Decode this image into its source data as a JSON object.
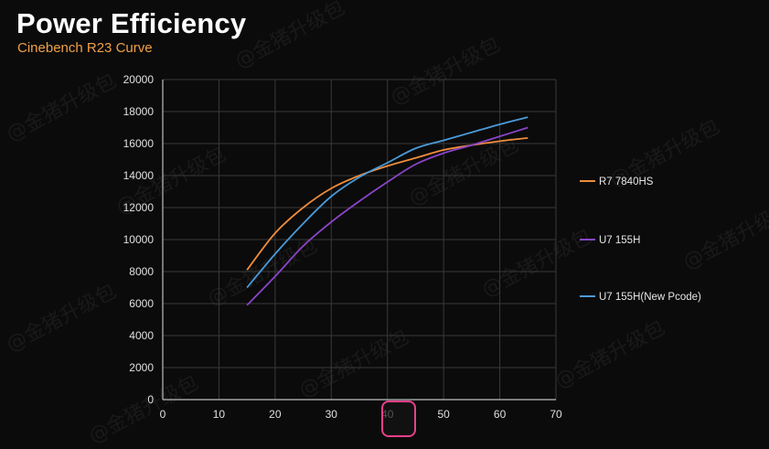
{
  "header": {
    "title": "Power Efficiency",
    "subtitle": "Cinebench R23 Curve"
  },
  "watermark": "@金猪升级包",
  "chart_data": {
    "type": "line",
    "title": "Power Efficiency",
    "subtitle": "Cinebench R23 Curve",
    "xlabel": "",
    "ylabel": "",
    "xlim": [
      0,
      70
    ],
    "ylim": [
      0,
      20000
    ],
    "xticks": [
      0,
      10,
      20,
      30,
      40,
      50,
      60,
      70
    ],
    "yticks": [
      0,
      2000,
      4000,
      6000,
      8000,
      10000,
      12000,
      14000,
      16000,
      18000,
      20000
    ],
    "grid": true,
    "legend_position": "right",
    "series": [
      {
        "name": "R7 7840HS",
        "color": "#f08c3c",
        "x": [
          15,
          20,
          25,
          30,
          35,
          40,
          45,
          50,
          55,
          60,
          65
        ],
        "y": [
          8100,
          10400,
          12000,
          13200,
          14000,
          14600,
          15100,
          15600,
          15900,
          16150,
          16350
        ]
      },
      {
        "name": "U7 155H",
        "color": "#8a44c8",
        "x": [
          15,
          20,
          25,
          30,
          35,
          40,
          45,
          50,
          55,
          60,
          65
        ],
        "y": [
          5900,
          7700,
          9600,
          11100,
          12400,
          13600,
          14700,
          15400,
          15900,
          16450,
          17000
        ]
      },
      {
        "name": "U7 155H(New Pcode)",
        "color": "#4a9ad8",
        "x": [
          15,
          20,
          25,
          30,
          35,
          40,
          45,
          50,
          55,
          60,
          65
        ],
        "y": [
          7000,
          9100,
          11000,
          12700,
          13900,
          14800,
          15700,
          16200,
          16700,
          17200,
          17650
        ]
      }
    ]
  }
}
